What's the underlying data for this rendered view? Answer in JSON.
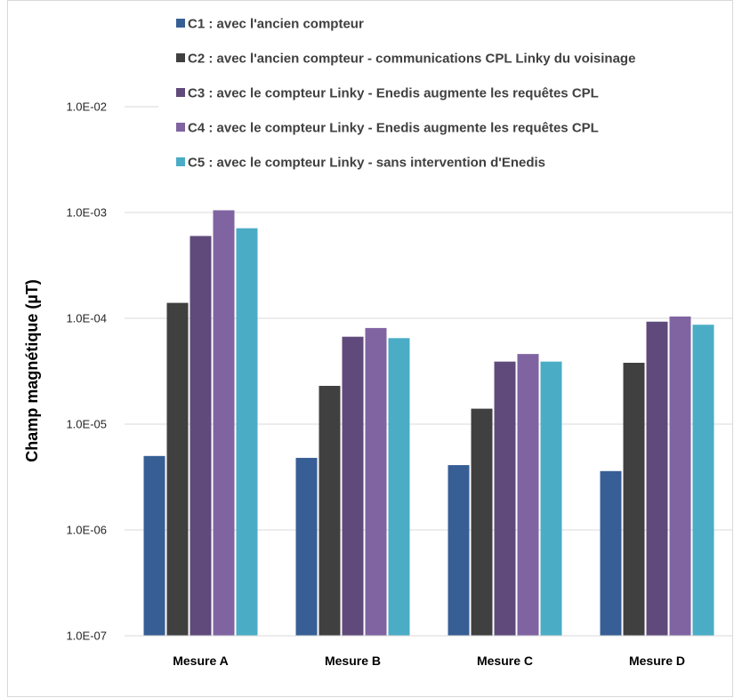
{
  "chart_data": {
    "type": "bar",
    "title": "",
    "xlabel": "",
    "ylabel": "Champ magnétique (µT)",
    "yscale": "log",
    "ylim": [
      1e-07,
      0.01
    ],
    "yticks": [
      "1.0E-07",
      "1.0E-06",
      "1.0E-05",
      "1.0E-04",
      "1.0E-03",
      "1.0E-02"
    ],
    "grid": true,
    "legend_position": "top",
    "categories": [
      "Mesure A",
      "Mesure B",
      "Mesure C",
      "Mesure D"
    ],
    "series": [
      {
        "name": "C1 : avec l'ancien compteur",
        "color": "#375f95",
        "values": [
          5e-06,
          4.8e-06,
          4.1e-06,
          3.6e-06
        ]
      },
      {
        "name": "C2 : avec l'ancien compteur - communications CPL Linky du voisinage",
        "color": "#404040",
        "values": [
          0.00014,
          2.3e-05,
          1.4e-05,
          3.8e-05
        ]
      },
      {
        "name": "C3 : avec le compteur Linky - Enedis augmente les requêtes CPL",
        "color": "#604a7b",
        "values": [
          0.0006,
          6.7e-05,
          3.9e-05,
          9.3e-05
        ]
      },
      {
        "name": "C4 : avec le compteur Linky - Enedis augmente les requêtes CPL",
        "color": "#8064a2",
        "values": [
          0.00105,
          8.1e-05,
          4.6e-05,
          0.000104
        ]
      },
      {
        "name": "C5 : avec le compteur Linky - sans intervention d'Enedis",
        "color": "#4bacc6",
        "values": [
          0.00071,
          6.5e-05,
          3.9e-05,
          8.7e-05
        ]
      }
    ]
  }
}
